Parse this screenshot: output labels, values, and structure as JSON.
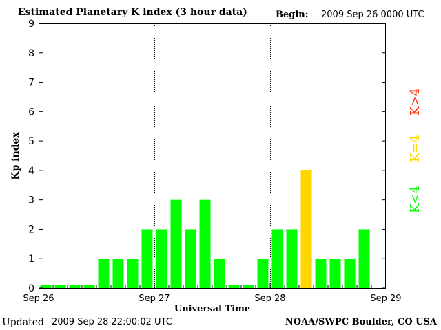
{
  "header": {
    "title": "Estimated Planetary K index (3 hour data)",
    "begin_label": "Begin:",
    "begin_value": "2009 Sep 26 0000 UTC"
  },
  "footer": {
    "updated_label": "Updated",
    "updated_value": "2009 Sep 28 22:00:02 UTC",
    "source": "NOAA/SWPC Boulder, CO USA"
  },
  "colors": {
    "low": "#00ff00",
    "mid": "#ffd700",
    "high": "#ff2a00"
  },
  "legend": {
    "high": "K>4",
    "mid": "K=4",
    "low": "K<4"
  },
  "chart_data": {
    "type": "bar",
    "title": "Estimated Planetary K index (3 hour data)",
    "xlabel": "Universal Time",
    "ylabel": "Kp index",
    "ylim": [
      0,
      9
    ],
    "yticks": [
      0,
      1,
      2,
      3,
      4,
      5,
      6,
      7,
      8,
      9
    ],
    "xtick_labels": [
      "Sep 26",
      "Sep 27",
      "Sep 28",
      "Sep 29"
    ],
    "day_separators": [
      "Sep 27",
      "Sep 28"
    ],
    "interval": "3 hour",
    "values": [
      0.1,
      0.1,
      0.1,
      0.1,
      1,
      1,
      1,
      2,
      2,
      3,
      2,
      3,
      1,
      0.1,
      0.1,
      1,
      2,
      2,
      4,
      1,
      1,
      1,
      2
    ],
    "legend_position": "right"
  }
}
